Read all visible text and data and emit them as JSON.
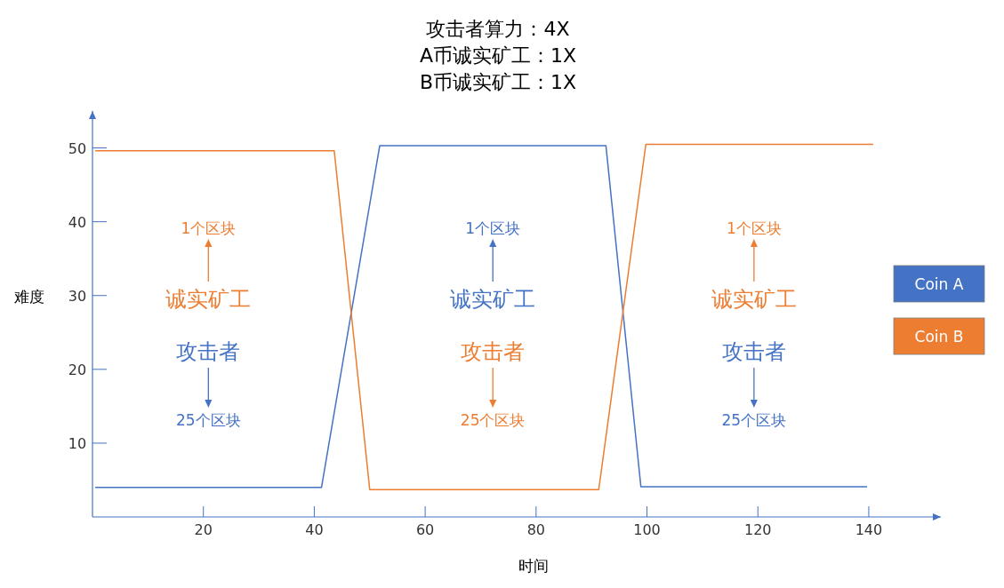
{
  "chart_data": {
    "type": "line",
    "title": "攻击者算力：4X\nA币诚实矿工：1X\nB币诚实矿工：1X",
    "xlabel": "时间",
    "ylabel": "难度",
    "xlim": [
      0,
      153
    ],
    "xticks": [
      20,
      40,
      60,
      80,
      100,
      120,
      140
    ],
    "ylim": [
      0,
      55
    ],
    "yticks": [
      10,
      20,
      30,
      40,
      50
    ],
    "grid": false,
    "legend": "right",
    "marker": "none",
    "line_style": "solid",
    "series": [
      {
        "name": "Coin A",
        "color": "#4472c4",
        "x": [
          0.5,
          41.3,
          51.8,
          92.6,
          98.9,
          139.7
        ],
        "values": [
          4,
          4,
          50.3,
          50.3,
          4.1,
          4.1
        ]
      },
      {
        "name": "Coin B",
        "color": "#ed7d31",
        "x": [
          0.5,
          43.6,
          50,
          91.3,
          99.8,
          140.8
        ],
        "values": [
          49.6,
          49.6,
          3.7,
          3.7,
          50.5,
          50.5
        ]
      }
    ],
    "annotations": [
      "1个区块",
      "诚实矿工",
      "攻击者",
      "25个区块",
      "1个区块",
      "诚实矿工",
      "攻击者",
      "25个区块",
      "1个区块",
      "诚实矿工",
      "攻击者",
      "25个区块"
    ]
  }
}
